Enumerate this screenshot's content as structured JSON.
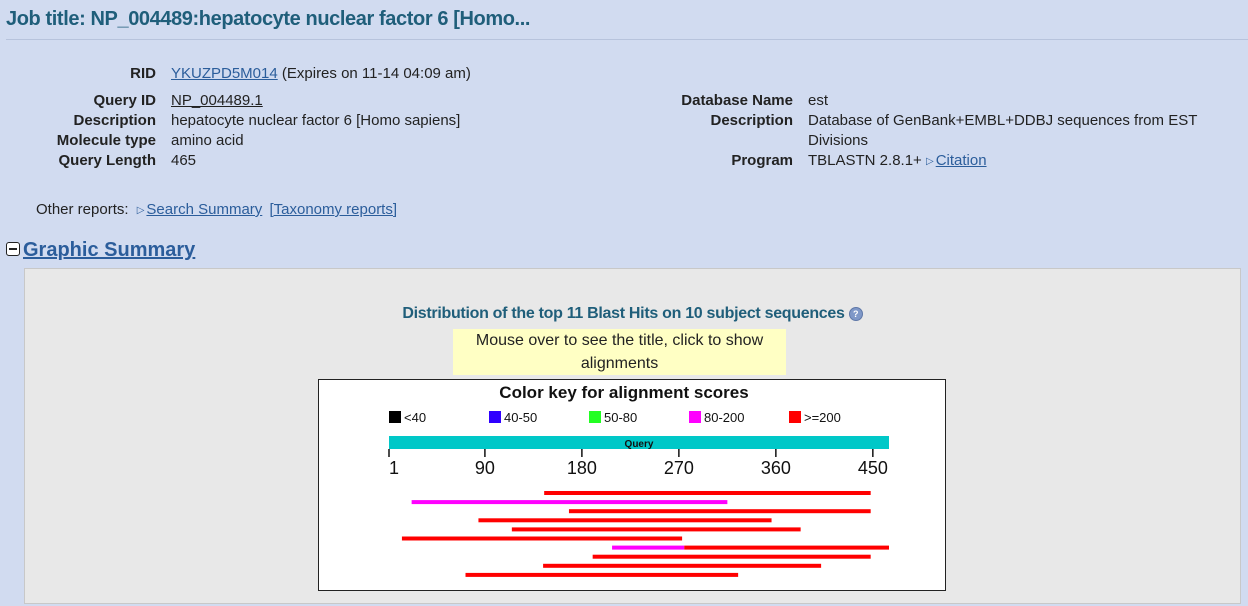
{
  "job_title": "Job title: NP_004489:hepatocyte nuclear factor 6 [Homo...",
  "left_info": {
    "rid_label": "RID",
    "rid_value": "YKUZPD5M014",
    "rid_expires": "(Expires on 11-14 04:09 am)",
    "query_id_label": "Query ID",
    "query_id_value": "NP_004489.1",
    "description_label": "Description",
    "description_value": "hepatocyte nuclear factor 6 [Homo sapiens]",
    "molecule_type_label": "Molecule type",
    "molecule_type_value": "amino acid",
    "query_length_label": "Query Length",
    "query_length_value": "465"
  },
  "right_info": {
    "database_name_label": "Database Name",
    "database_name_value": "est",
    "description_label": "Description",
    "description_line1": "Database of GenBank+EMBL+DDBJ sequences from EST",
    "description_line2": "Divisions",
    "program_label": "Program",
    "program_value": "TBLASTN 2.8.1+",
    "citation_link": "Citation"
  },
  "other_reports": {
    "label": "Other reports:",
    "search_summary": "Search Summary",
    "taxonomy_reports": "[Taxonomy reports]"
  },
  "graphic_summary": {
    "title": "Graphic Summary",
    "distribution_title": "Distribution of the top 11 Blast Hits on 10 subject sequences",
    "help_icon": "?",
    "mouse_over_line1": "Mouse over to see the title, click to show",
    "mouse_over_line2": "alignments"
  },
  "chart_data": {
    "type": "bar",
    "title": "Color key for alignment scores",
    "legend": [
      {
        "label": "<40",
        "color": "#000000"
      },
      {
        "label": "40-50",
        "color": "#2f00ff"
      },
      {
        "label": "50-80",
        "color": "#22ff22"
      },
      {
        "label": "80-200",
        "color": "#ff00ff"
      },
      {
        "label": ">=200",
        "color": "#ff0000"
      }
    ],
    "query_label": "Query",
    "query_bar_color": "#00c8c8",
    "query_length": 465,
    "axis_ticks": [
      1,
      90,
      180,
      270,
      360,
      450
    ],
    "hits": [
      {
        "segments": [
          {
            "start": 145,
            "end": 448,
            "color": "#ff0000"
          }
        ]
      },
      {
        "segments": [
          {
            "start": 22,
            "end": 315,
            "color": "#ff00ff"
          }
        ]
      },
      {
        "segments": [
          {
            "start": 168,
            "end": 448,
            "color": "#ff0000"
          }
        ]
      },
      {
        "segments": [
          {
            "start": 84,
            "end": 356,
            "color": "#ff0000"
          }
        ]
      },
      {
        "segments": [
          {
            "start": 115,
            "end": 383,
            "color": "#ff0000"
          }
        ]
      },
      {
        "segments": [
          {
            "start": 13,
            "end": 273,
            "color": "#ff0000"
          }
        ]
      },
      {
        "segments": [
          {
            "start": 208,
            "end": 275,
            "color": "#ff00ff"
          },
          {
            "start": 275,
            "end": 465,
            "color": "#ff0000"
          }
        ]
      },
      {
        "segments": [
          {
            "start": 190,
            "end": 448,
            "color": "#ff0000"
          }
        ]
      },
      {
        "segments": [
          {
            "start": 144,
            "end": 402,
            "color": "#ff0000"
          }
        ]
      },
      {
        "segments": [
          {
            "start": 72,
            "end": 325,
            "color": "#ff0000"
          }
        ]
      }
    ]
  }
}
